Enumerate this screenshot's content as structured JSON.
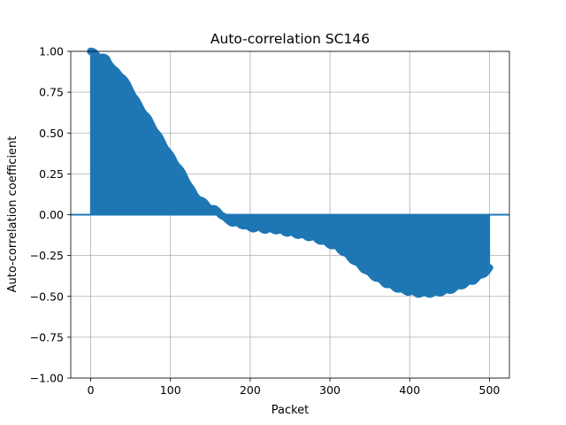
{
  "chart_data": {
    "type": "stem",
    "title": "Auto-correlation SC146",
    "xlabel": "Packet",
    "ylabel": "Auto-correlation coefficient",
    "xlim": [
      -25,
      525
    ],
    "ylim": [
      -1.0,
      1.0
    ],
    "xticks": [
      0,
      100,
      200,
      300,
      400,
      500
    ],
    "yticks": [
      -1.0,
      -0.75,
      -0.5,
      -0.25,
      0.0,
      0.25,
      0.5,
      0.75,
      1.0
    ],
    "xtick_labels": [
      "0",
      "100",
      "200",
      "300",
      "400",
      "500"
    ],
    "ytick_labels": [
      "−1.00",
      "−0.75",
      "−0.50",
      "−0.25",
      "0.00",
      "0.25",
      "0.50",
      "0.75",
      "1.00"
    ],
    "grid": true,
    "baseline": 0.0,
    "color": "#1f77b4",
    "lags_range": [
      0,
      500
    ],
    "envelope": {
      "x": [
        0,
        10,
        20,
        30,
        40,
        50,
        60,
        70,
        80,
        90,
        100,
        110,
        120,
        130,
        140,
        150,
        160,
        170,
        180,
        190,
        200,
        210,
        220,
        230,
        240,
        250,
        260,
        270,
        280,
        290,
        300,
        310,
        320,
        330,
        340,
        350,
        360,
        370,
        380,
        390,
        400,
        410,
        420,
        430,
        440,
        450,
        460,
        470,
        480,
        490,
        500
      ],
      "y": [
        1.0,
        0.97,
        0.95,
        0.88,
        0.84,
        0.76,
        0.67,
        0.6,
        0.52,
        0.44,
        0.36,
        0.29,
        0.21,
        0.12,
        0.08,
        0.04,
        0.02,
        -0.03,
        -0.05,
        -0.06,
        -0.08,
        -0.08,
        -0.09,
        -0.09,
        -0.1,
        -0.11,
        -0.12,
        -0.13,
        -0.14,
        -0.16,
        -0.18,
        -0.2,
        -0.24,
        -0.28,
        -0.32,
        -0.36,
        -0.39,
        -0.42,
        -0.44,
        -0.46,
        -0.47,
        -0.48,
        -0.48,
        -0.48,
        -0.47,
        -0.46,
        -0.44,
        -0.42,
        -0.4,
        -0.37,
        -0.33
      ]
    }
  }
}
